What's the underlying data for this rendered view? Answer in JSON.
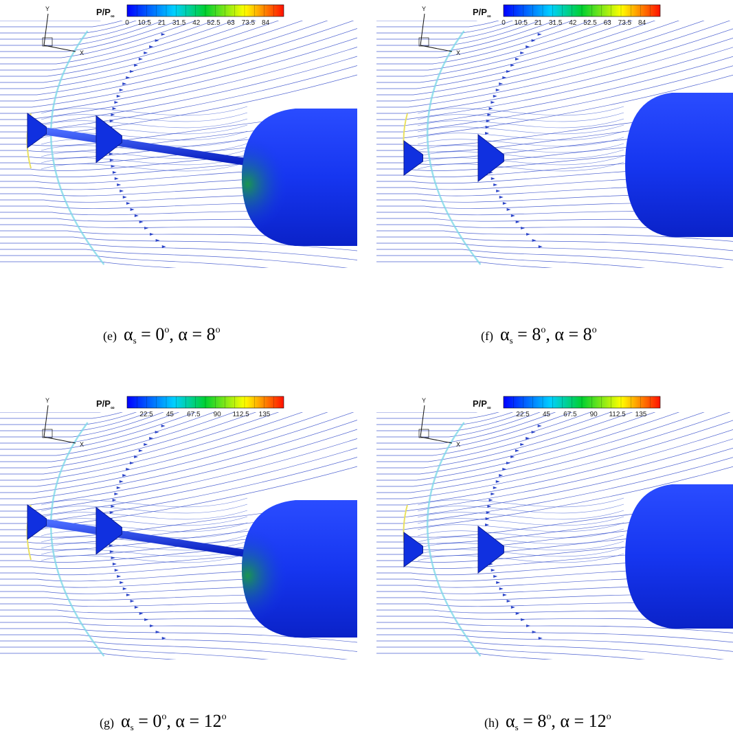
{
  "panels": [
    {
      "colorbar": {
        "title": "P/P",
        "title_sub": "∞",
        "ticks": [
          "0",
          "10.5",
          "21",
          "31.5",
          "42",
          "52.5",
          "63",
          "73.5",
          "84"
        ]
      },
      "axes": {
        "y": "Y",
        "x": "X"
      },
      "caption": {
        "label": "(e)",
        "parts": [
          "α",
          "s",
          " = 0",
          "o",
          ", α = 8",
          "o"
        ]
      }
    },
    {
      "colorbar": {
        "title": "P/P",
        "title_sub": "∞",
        "ticks": [
          "0",
          "10.5",
          "21",
          "31.5",
          "42",
          "52.5",
          "63",
          "73.5",
          "84"
        ]
      },
      "axes": {
        "y": "Y",
        "x": "X"
      },
      "caption": {
        "label": "(f)",
        "parts": [
          "α",
          "s",
          " = 8",
          "o",
          ", α = 8",
          "o"
        ]
      }
    },
    {
      "colorbar": {
        "title": "P/P",
        "title_sub": "∞",
        "ticks": [
          "22.5",
          "45",
          "67.5",
          "90",
          "112.5",
          "135"
        ]
      },
      "axes": {
        "y": "Y",
        "x": "X"
      },
      "caption": {
        "label": "(g)",
        "parts": [
          "α",
          "s",
          " = 0",
          "o",
          ", α = 12",
          "o"
        ]
      }
    },
    {
      "colorbar": {
        "title": "P/P",
        "title_sub": "∞",
        "ticks": [
          "22.5",
          "45",
          "67.5",
          "90",
          "112.5",
          "135"
        ]
      },
      "axes": {
        "y": "Y",
        "x": "X"
      },
      "caption": {
        "label": "(h)",
        "parts": [
          "α",
          "s",
          " = 8",
          "o",
          ", α = 12",
          "o"
        ]
      }
    }
  ]
}
